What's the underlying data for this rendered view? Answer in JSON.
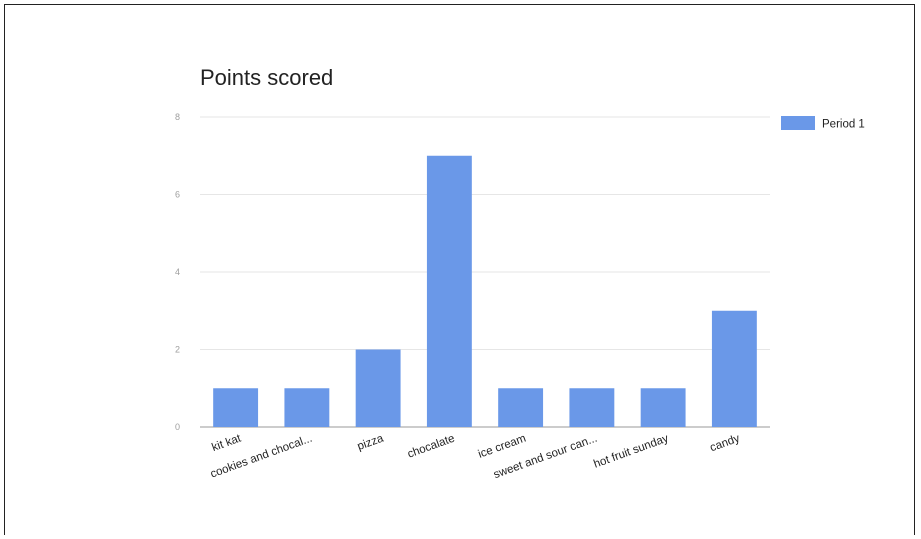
{
  "chart_data": {
    "type": "bar",
    "title": "Points scored",
    "categories": [
      "kit kat",
      "cookies and chocal...",
      "pizza",
      "chocalate",
      "ice cream",
      "sweet and sour can...",
      "hot fruit sunday",
      "candy"
    ],
    "series": [
      {
        "name": "Period 1",
        "values": [
          1,
          1,
          2,
          7,
          1,
          1,
          1,
          3
        ],
        "color": "#6a98e8"
      }
    ],
    "ylim": [
      0,
      8
    ],
    "yticks": [
      "0",
      "2",
      "4",
      "6",
      "8"
    ],
    "grid": true,
    "legend": "right"
  }
}
